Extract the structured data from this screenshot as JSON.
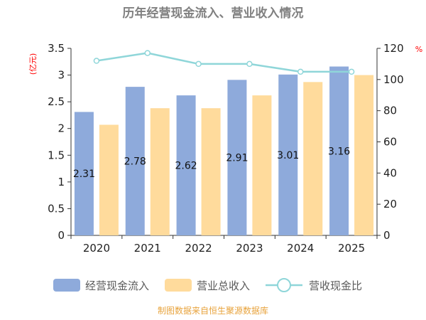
{
  "chart_data": {
    "type": "bar",
    "title": "历年经营现金流入、营业收入情况",
    "categories": [
      "2020",
      "2021",
      "2022",
      "2023",
      "2024",
      "2025"
    ],
    "series": [
      {
        "name": "经营现金流入",
        "type": "bar",
        "axis": "left",
        "color": "#8eaadb",
        "values": [
          2.31,
          2.78,
          2.62,
          2.91,
          3.01,
          3.16
        ],
        "labels": [
          "2.31",
          "2.78",
          "2.62",
          "2.91",
          "3.01",
          "3.16"
        ]
      },
      {
        "name": "营业总收入",
        "type": "bar",
        "axis": "left",
        "color": "#ffdb9c",
        "values": [
          2.07,
          2.38,
          2.38,
          2.62,
          2.87,
          3.0
        ]
      },
      {
        "name": "营收现金比",
        "type": "line",
        "axis": "right",
        "color": "#8fd6d9",
        "values": [
          112,
          117,
          110,
          110,
          105,
          105
        ]
      }
    ],
    "y_left": {
      "unit": "(亿元)",
      "min": 0,
      "max": 3.5,
      "ticks": [
        "0",
        "0.5",
        "1",
        "1.5",
        "2",
        "2.5",
        "3",
        "3.5"
      ]
    },
    "y_right": {
      "unit": "%",
      "min": 0,
      "max": 120,
      "ticks": [
        "0",
        "20",
        "40",
        "60",
        "80",
        "100",
        "120"
      ]
    },
    "legend_position": "bottom",
    "source": "制图数据来自恒生聚源数据库"
  }
}
